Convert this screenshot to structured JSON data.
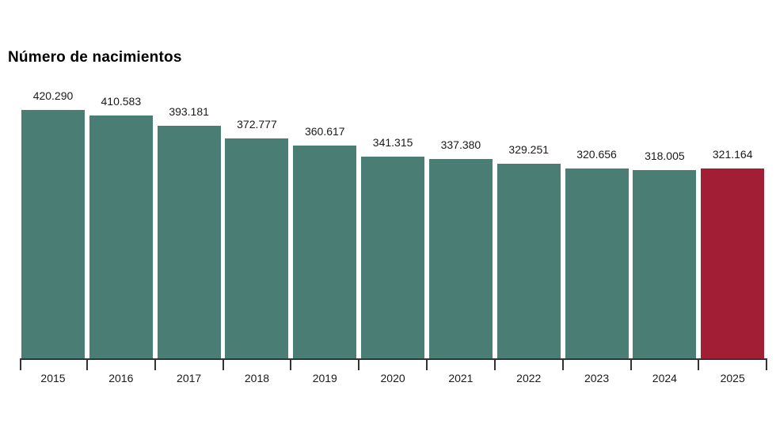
{
  "title": "Número de nacimientos",
  "chart_data": {
    "type": "bar",
    "title": "Número de nacimientos",
    "xlabel": "",
    "ylabel": "",
    "categories": [
      "2015",
      "2016",
      "2017",
      "2018",
      "2019",
      "2020",
      "2021",
      "2022",
      "2023",
      "2024",
      "2025"
    ],
    "values": [
      420290,
      410583,
      393181,
      372777,
      360617,
      341315,
      337380,
      329251,
      320656,
      318005,
      321164
    ],
    "value_labels": [
      "420.290",
      "410.583",
      "393.181",
      "372.777",
      "360.617",
      "341.315",
      "337.380",
      "329.251",
      "320.656",
      "318.005",
      "321.164"
    ],
    "ylim": [
      0,
      440000
    ],
    "grid": false,
    "legend": false,
    "bar_color": "#4A7D73",
    "highlight_color": "#A21E35",
    "highlight_index": 10,
    "axis_color": "#333333"
  }
}
